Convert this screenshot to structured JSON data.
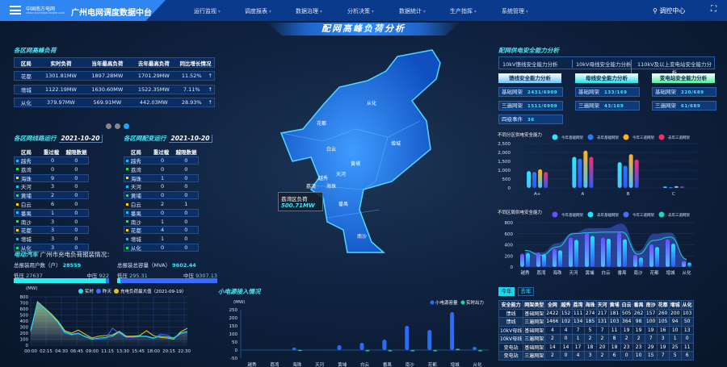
{
  "header": {
    "logo_cn": "中国南方电网",
    "logo_en": "CHINA SOUTHERN POWER GRID",
    "app_title": "广州电网调度数据中台",
    "nav": [
      "运行监视",
      "调度报表",
      "数据治理",
      "分析决策",
      "数据统计",
      "生产指挥",
      "系统管理"
    ],
    "user": "调控中心",
    "fullscreen_icon": "fullscreen-icon",
    "user_icon": "user-icon"
  },
  "page_title": "配网高峰负荷分析",
  "peak": {
    "title": "各区网高峰负荷",
    "columns": [
      "区局",
      "实时负荷",
      "当年最高负荷",
      "去年最高负荷",
      "同比增长情况"
    ],
    "rows": [
      [
        "花都",
        "1301.81MW",
        "1897.28MW",
        "1701.29MW",
        "11.52%"
      ],
      [
        "增城",
        "1122.19MW",
        "1630.60MW",
        "1522.35MW",
        "7.11%"
      ],
      [
        "从化",
        "379.97MW",
        "569.91MW",
        "442.03MW",
        "28.93%"
      ]
    ],
    "trend_icon": "arrow-up-icon",
    "pager_active": 3,
    "pager_count": 3
  },
  "line_run": {
    "title": "各区网线路运行",
    "date": "2021-10-20",
    "columns": [
      "区局",
      "重过载",
      "越限数据"
    ],
    "rows": [
      [
        "越秀",
        "0",
        "0"
      ],
      [
        "荔湾",
        "0",
        "0"
      ],
      [
        "海珠",
        "9",
        "0"
      ],
      [
        "天河",
        "3",
        "0"
      ],
      [
        "黄埔",
        "2",
        "0"
      ],
      [
        "白云",
        "6",
        "0"
      ],
      [
        "番禺",
        "1",
        "0"
      ],
      [
        "南沙",
        "3",
        "0"
      ],
      [
        "花都",
        "3",
        "0"
      ],
      [
        "增城",
        "3",
        "0"
      ],
      [
        "从化",
        "3",
        "0"
      ]
    ]
  },
  "transformer_run": {
    "title": "各区网配变运行",
    "date": "2021-10-20",
    "columns": [
      "区局",
      "重过载",
      "越限数据"
    ],
    "rows": [
      [
        "越秀",
        "0",
        "0"
      ],
      [
        "荔湾",
        "0",
        "0"
      ],
      [
        "海珠",
        "1",
        "0"
      ],
      [
        "天河",
        "0",
        "0"
      ],
      [
        "黄埔",
        "0",
        "0"
      ],
      [
        "白云",
        "2",
        "1"
      ],
      [
        "番禺",
        "0",
        "0"
      ],
      [
        "南沙",
        "1",
        "0"
      ],
      [
        "花都",
        "4",
        "0"
      ],
      [
        "增城",
        "1",
        "0"
      ],
      [
        "从化",
        "0",
        "0"
      ]
    ]
  },
  "bullet_colors": [
    "#1ab8ff",
    "#22dd55",
    "#ffd21a"
  ],
  "ev": {
    "title": "电动汽车",
    "subtitle": "广州市充电负荷报装情况：",
    "users_label": "总报装用户数（户）",
    "users_value": "28559",
    "cap_label": "总报装总容量（MVA）",
    "cap_value": "9602.44",
    "low_label": "低压",
    "mid_label": "中压",
    "users_low": "27637",
    "users_mid": "922",
    "cap_low": "295.31",
    "cap_mid": "9307.13",
    "users_low_frac": 0.968,
    "cap_low_frac": 0.031
  },
  "map": {
    "districts": [
      "从化",
      "花都",
      "增城",
      "白云",
      "黄埔",
      "天河",
      "越秀",
      "荔湾",
      "海珠",
      "番禺",
      "南沙"
    ],
    "tooltip_label": "荔湾区负荷",
    "tooltip_value": "500.71MW"
  },
  "small_power": {
    "title": "小电源接入情况"
  },
  "safety": {
    "title": "配网供电安全能力分析",
    "tabs": [
      "10kV馈线安全能力分析",
      "10kV母线安全能力分析",
      "110kV及以上变电站安全能力分析"
    ],
    "groups": [
      {
        "label": "馈线安全能力分析",
        "color": "#6fc6ff",
        "cards": [
          [
            "基础网架",
            "2431/6909"
          ],
          [
            "三遍网架",
            "1511/6909"
          ],
          [
            "四级事件",
            "36"
          ]
        ]
      },
      {
        "label": "母线安全能力分析",
        "color": "#22e3e8",
        "cards": [
          [
            "基础网架",
            "133/169"
          ],
          [
            "三遍网架",
            "43/169"
          ]
        ]
      },
      {
        "label": "变电站安全能力分析",
        "color": "#4ff0a0",
        "cards": [
          [
            "基础网架",
            "220/689"
          ],
          [
            "三遍网架",
            "61/689"
          ]
        ]
      }
    ],
    "year_tabs": [
      "今年",
      "去年"
    ],
    "table": [
      [
        "安全能力",
        "网架类型",
        "全网",
        "越秀",
        "荔湾",
        "海珠",
        "天河",
        "黄埔",
        "白云",
        "番禺",
        "南沙",
        "花都",
        "增城",
        "从化"
      ],
      [
        "馈线",
        "基础网架",
        "2422",
        "152",
        "111",
        "274",
        "217",
        "181",
        "505",
        "262",
        "157",
        "260",
        "200",
        "103"
      ],
      [
        "馈线",
        "三遍网架",
        "1466",
        "102",
        "134",
        "185",
        "131",
        "103",
        "364",
        "98",
        "100",
        "105",
        "94",
        "50"
      ],
      [
        "10kV母线",
        "基础网架",
        "4",
        "4",
        "7",
        "5",
        "7",
        "11",
        "19",
        "19",
        "19",
        "16",
        "10",
        "13"
      ],
      [
        "10kV母线",
        "三遍网架",
        "2",
        "0",
        "1",
        "2",
        "2",
        "8",
        "2",
        "2",
        "7",
        "3",
        "1",
        "0"
      ],
      [
        "变电站",
        "基础网架",
        "14",
        "14",
        "17",
        "18",
        "20",
        "18",
        "23",
        "23",
        "29",
        "19",
        "25",
        "11"
      ],
      [
        "变电站",
        "三遍网架",
        "2",
        "0",
        "4",
        "3",
        "2",
        "6",
        "0",
        "10",
        "15",
        "7",
        "5",
        "6"
      ]
    ]
  },
  "chart_data": [
    {
      "type": "line",
      "id": "ev_load",
      "ylabel": "(MW)",
      "ylim": [
        0,
        800
      ],
      "yticks": [
        0,
        100,
        200,
        300,
        400,
        500,
        600,
        700,
        800
      ],
      "xticks": [
        "00:00",
        "02:15",
        "04:30",
        "06:45",
        "09:00",
        "11:15",
        "13:30",
        "15:45",
        "18:00",
        "20:15",
        "22:30"
      ],
      "x": [
        "00:00",
        "01:00",
        "02:00",
        "03:00",
        "04:00",
        "05:00",
        "06:00",
        "07:00",
        "08:00",
        "09:00",
        "10:00",
        "11:00",
        "12:00",
        "13:00",
        "14:00",
        "15:00",
        "16:00",
        "17:00",
        "18:00",
        "19:00",
        "20:00",
        "21:00",
        "22:00",
        "23:00"
      ],
      "series": [
        {
          "name": "实时",
          "color": "#19e3f0",
          "values": [
            250,
            700,
            600,
            500,
            380,
            220,
            180,
            200,
            140,
            100,
            120,
            130,
            150,
            220,
            140,
            140,
            150,
            150,
            120,
            150,
            140,
            120,
            200,
            230
          ]
        },
        {
          "name": "昨天",
          "color": "#3a6bff",
          "values": [
            240,
            690,
            590,
            490,
            370,
            200,
            170,
            190,
            150,
            110,
            100,
            110,
            280,
            200,
            130,
            130,
            140,
            140,
            110,
            180,
            170,
            110,
            190,
            210
          ]
        },
        {
          "name": "充电负荷最大值（2021-09-19）",
          "color": "#e8c21a",
          "values": [
            230,
            720,
            620,
            520,
            400,
            240,
            200,
            250,
            180,
            120,
            150,
            160,
            170,
            230,
            150,
            150,
            160,
            240,
            160,
            130,
            120,
            100,
            220,
            280
          ]
        }
      ]
    },
    {
      "type": "bar",
      "id": "small_power",
      "ylabel": "(MW)",
      "ylim": [
        -50,
        250
      ],
      "yticks": [
        -50,
        0,
        50,
        100,
        150,
        200,
        250
      ],
      "categories": [
        "越秀",
        "荔湾",
        "海珠",
        "天河",
        "黄埔",
        "白云",
        "番禺",
        "南沙",
        "花都",
        "增城",
        "从化"
      ],
      "series": [
        {
          "name": "小电源容量",
          "color": "#2a6bff",
          "values": [
            0,
            0,
            15,
            0,
            30,
            45,
            65,
            150,
            125,
            235,
            20
          ]
        },
        {
          "name": "实时出力",
          "color": "#1ad6a0",
          "values": [
            0,
            0,
            2,
            0,
            0,
            -2,
            -2,
            -2,
            -8,
            8,
            -2
          ]
        }
      ]
    },
    {
      "type": "bar",
      "id": "zone_safety",
      "title": "不同分区供电安全能力",
      "ylim": [
        0,
        2500
      ],
      "yticks": [
        "0",
        "500",
        "1,000",
        "1,500",
        "2,000",
        "2,500"
      ],
      "categories": [
        "A+",
        "A",
        "B",
        "C"
      ],
      "series": [
        {
          "name": "今年基础网架",
          "color": "#28e6ff",
          "values": [
            950,
            1750,
            1450,
            80
          ]
        },
        {
          "name": "去年基础网架",
          "color": "#2a7bff",
          "values": [
            900,
            1650,
            1250,
            50
          ]
        },
        {
          "name": "今年三道网架",
          "color": "#ffb31a",
          "values": [
            1050,
            2100,
            1900,
            100
          ]
        },
        {
          "name": "去年三道网架",
          "color": "#ff2a6a",
          "values": [
            900,
            1750,
            1600,
            80
          ]
        }
      ]
    },
    {
      "type": "bar",
      "id": "district_safety",
      "title": "不同区局供电安全能力",
      "ylim": [
        0,
        800
      ],
      "yticks": [
        0,
        200,
        400,
        600,
        800
      ],
      "categories": [
        "越秀",
        "荔湾",
        "海珠",
        "天河",
        "黄埔",
        "白云",
        "番禺",
        "南沙",
        "花都",
        "增城",
        "从化"
      ],
      "series": [
        {
          "name": "今年基础网架",
          "color": "#6a4dff",
          "values": [
            240,
            260,
            330,
            530,
            620,
            530,
            620,
            220,
            410,
            500,
            110
          ]
        },
        {
          "name": "去年基础网架",
          "color": "#19e8ff",
          "values": [
            250,
            230,
            300,
            490,
            560,
            510,
            500,
            170,
            360,
            420,
            80
          ]
        },
        {
          "name": "今年三道网架",
          "color": "#4a6bff",
          "values": [
            280,
            260,
            430,
            620,
            700,
            700,
            780,
            290,
            600,
            620,
            150
          ]
        },
        {
          "name": "去年三道网架",
          "color": "#19d6c6",
          "values": [
            300,
            210,
            360,
            600,
            620,
            630,
            630,
            230,
            480,
            540,
            140
          ]
        }
      ]
    }
  ]
}
